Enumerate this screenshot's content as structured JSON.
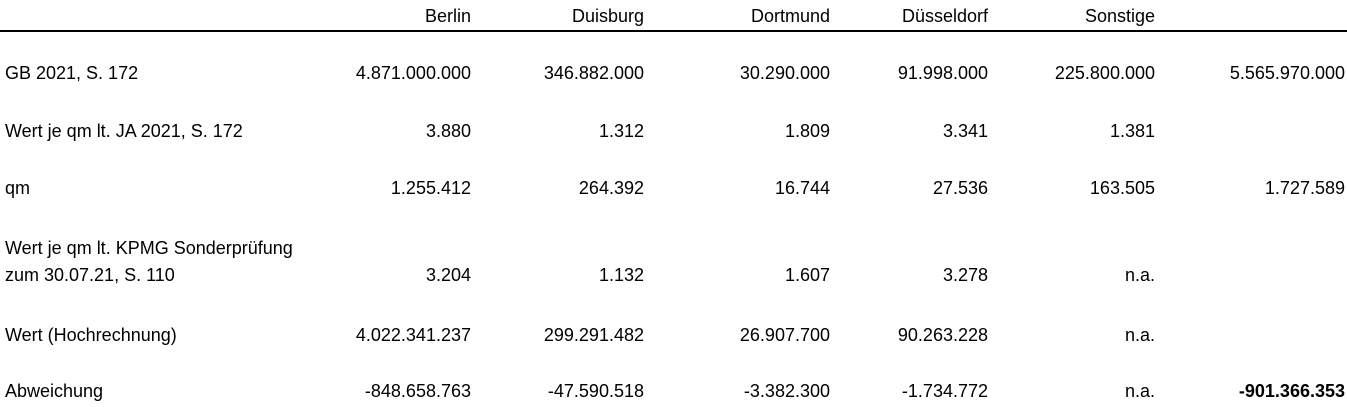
{
  "colors": {
    "background": "#ffffff",
    "text": "#000000",
    "header_rule": "#000000"
  },
  "table": {
    "columns": [
      "",
      "Berlin",
      "Duisburg",
      "Dortmund",
      "Düsseldorf",
      "Sonstige",
      ""
    ],
    "rows": [
      {
        "label": "GB 2021, S. 172",
        "values": [
          "4.871.000.000",
          "346.882.000",
          "30.290.000",
          "91.998.000",
          "225.800.000",
          "5.565.970.000"
        ]
      },
      {
        "label": "Wert je qm lt. JA 2021, S. 172",
        "values": [
          "3.880",
          "1.312",
          "1.809",
          "3.341",
          "1.381",
          ""
        ]
      },
      {
        "label": "qm",
        "values": [
          "1.255.412",
          "264.392",
          "16.744",
          "27.536",
          "163.505",
          "1.727.589"
        ]
      },
      {
        "label": "Wert je qm lt. KPMG Sonderprüfung",
        "label2": "zum 30.07.21, S. 110",
        "values": [
          "3.204",
          "1.132",
          "1.607",
          "3.278",
          "n.a.",
          ""
        ]
      },
      {
        "label": "Wert (Hochrechnung)",
        "values": [
          "4.022.341.237",
          "299.291.482",
          "26.907.700",
          "90.263.228",
          "n.a.",
          ""
        ]
      },
      {
        "label": "Abweichung",
        "values": [
          "-848.658.763",
          "-47.590.518",
          "-3.382.300",
          "-1.734.772",
          "n.a.",
          "-901.366.353"
        ],
        "total_bold": true
      }
    ]
  }
}
